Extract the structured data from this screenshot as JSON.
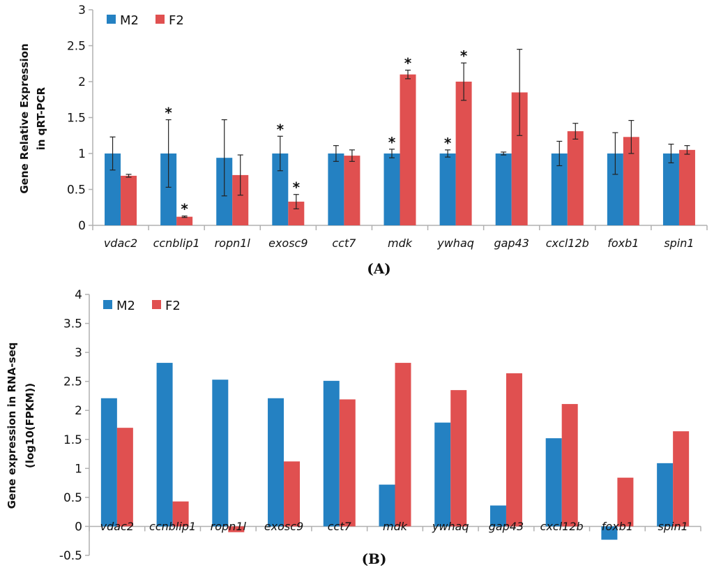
{
  "chart_data": [
    {
      "type": "bar",
      "panel_label": "(A)",
      "ylabel_lines": [
        "Gene Relative Expression",
        "in qRT-PCR"
      ],
      "categories": [
        "vdac2",
        "ccnblip1",
        "ropn1l",
        "exosc9",
        "cct7",
        "mdk",
        "ywhaq",
        "gap43",
        "cxcl12b",
        "foxb1",
        "spin1"
      ],
      "ylim": [
        0,
        3
      ],
      "yticks": [
        "0",
        "0.5",
        "1",
        "1.5",
        "2",
        "2.5",
        "3"
      ],
      "grid": false,
      "legend_placement": "top-left",
      "series": [
        {
          "name": "M2",
          "color": "#2481c2",
          "values": [
            1.0,
            1.0,
            0.94,
            1.0,
            1.0,
            1.0,
            1.0,
            1.0,
            1.0,
            1.0,
            1.0
          ],
          "errors": [
            0.23,
            0.47,
            0.53,
            0.24,
            0.11,
            0.06,
            0.05,
            0.02,
            0.17,
            0.29,
            0.13
          ],
          "significant": [
            false,
            true,
            false,
            true,
            false,
            true,
            true,
            false,
            false,
            false,
            false
          ]
        },
        {
          "name": "F2",
          "color": "#e05050",
          "values": [
            0.69,
            0.12,
            0.7,
            0.33,
            0.97,
            2.1,
            2.0,
            1.85,
            1.31,
            1.23,
            1.05
          ],
          "errors": [
            0.02,
            0.01,
            0.28,
            0.1,
            0.08,
            0.06,
            0.26,
            0.6,
            0.11,
            0.23,
            0.06
          ],
          "significant": [
            false,
            true,
            false,
            true,
            false,
            true,
            true,
            false,
            false,
            false,
            false
          ]
        }
      ],
      "significance_marker": "*"
    },
    {
      "type": "bar",
      "panel_label": "(B)",
      "ylabel_lines": [
        "Gene expression in RNA-seq",
        "(log10(FPKM))"
      ],
      "categories": [
        "vdac2",
        "ccnblip1",
        "ropn1l",
        "exosc9",
        "cct7",
        "mdk",
        "ywhaq",
        "gap43",
        "cxcl12b",
        "foxb1",
        "spin1"
      ],
      "ylim": [
        -0.5,
        4
      ],
      "yticks": [
        "-0.5",
        "0",
        "0.5",
        "1",
        "1.5",
        "2",
        "2.5",
        "3",
        "3.5",
        "4"
      ],
      "grid": false,
      "legend_placement": "top-left",
      "series": [
        {
          "name": "M2",
          "color": "#2481c2",
          "values": [
            2.21,
            2.82,
            2.53,
            2.21,
            2.51,
            0.72,
            1.79,
            0.36,
            1.52,
            -0.23,
            1.09
          ]
        },
        {
          "name": "F2",
          "color": "#e05050",
          "values": [
            1.7,
            0.43,
            -0.1,
            1.12,
            2.19,
            2.82,
            2.35,
            2.64,
            2.11,
            0.84,
            1.64
          ]
        }
      ]
    }
  ]
}
